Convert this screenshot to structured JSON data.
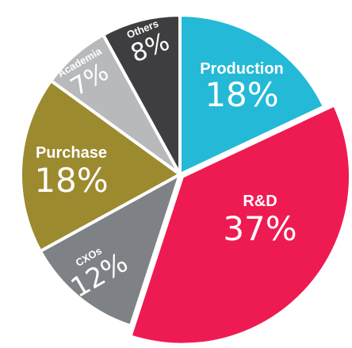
{
  "chart_data": {
    "type": "pie",
    "slices": [
      {
        "label": "Production",
        "value": 18,
        "value_label": "18%",
        "color": "#24B9D7",
        "exploded": false
      },
      {
        "label": "R&D",
        "value": 37,
        "value_label": "37%",
        "color": "#EE1B52",
        "exploded": true
      },
      {
        "label": "CXOs",
        "value": 12,
        "value_label": "12%",
        "color": "#7E8185",
        "exploded": false
      },
      {
        "label": "Purchase",
        "value": 18,
        "value_label": "18%",
        "color": "#9C8A2E",
        "exploded": false
      },
      {
        "label": "Academia",
        "value": 7,
        "value_label": "7%",
        "color": "#B7B9BB",
        "exploded": false
      },
      {
        "label": "Others",
        "value": 8,
        "value_label": "8%",
        "color": "#3E3E40",
        "exploded": false
      }
    ]
  }
}
